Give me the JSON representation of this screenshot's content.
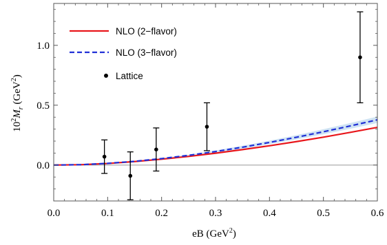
{
  "chart_data": {
    "type": "line",
    "title": "",
    "xlabel": {
      "main": "eB (GeV",
      "sup": "2",
      "tail": ")"
    },
    "ylabel": {
      "pre": "10",
      "pre_sup": "2",
      "sym": "M",
      "sub": "r",
      "mid": " (GeV",
      "sup": "2",
      "tail": ")"
    },
    "xlim": [
      0.0,
      0.6
    ],
    "ylim": [
      -0.3,
      1.35
    ],
    "x_ticks": [
      0.0,
      0.1,
      0.2,
      0.3,
      0.4,
      0.5,
      0.6
    ],
    "x_tick_labels": [
      "0.0",
      "0.1",
      "0.2",
      "0.3",
      "0.4",
      "0.5",
      "0.6"
    ],
    "y_ticks": [
      0.0,
      0.5,
      1.0
    ],
    "y_tick_labels": [
      "0.0",
      "0.5",
      "1.0"
    ],
    "grid": false,
    "legend_position": "top-left",
    "colors": {
      "nlo2": "#e8161b",
      "nlo3": "#1f2fd6",
      "band": "#cfe3f3",
      "lattice": "#000000",
      "zero_line": "#999999"
    },
    "series": [
      {
        "name": "NLO (2−flavor)",
        "style": "solid",
        "x": [
          0.0,
          0.05,
          0.1,
          0.15,
          0.2,
          0.25,
          0.3,
          0.35,
          0.4,
          0.45,
          0.5,
          0.55,
          0.6
        ],
        "y": [
          0.0,
          0.003,
          0.013,
          0.029,
          0.049,
          0.072,
          0.099,
          0.129,
          0.161,
          0.196,
          0.233,
          0.273,
          0.315
        ]
      },
      {
        "name": "NLO (3−flavor)",
        "style": "dashed",
        "x": [
          0.0,
          0.05,
          0.1,
          0.15,
          0.2,
          0.25,
          0.3,
          0.35,
          0.4,
          0.45,
          0.5,
          0.55,
          0.6
        ],
        "y": [
          0.0,
          0.003,
          0.014,
          0.031,
          0.054,
          0.081,
          0.113,
          0.149,
          0.189,
          0.232,
          0.278,
          0.327,
          0.378
        ],
        "band_low": [
          0.0,
          0.003,
          0.013,
          0.029,
          0.05,
          0.075,
          0.104,
          0.137,
          0.174,
          0.214,
          0.257,
          0.303,
          0.352
        ],
        "band_high": [
          0.0,
          0.003,
          0.015,
          0.033,
          0.058,
          0.087,
          0.122,
          0.161,
          0.204,
          0.25,
          0.299,
          0.351,
          0.405
        ]
      },
      {
        "name": "Lattice",
        "style": "points",
        "points": [
          {
            "x": 0.094,
            "y": 0.07,
            "err_low": -0.07,
            "err_high": 0.21
          },
          {
            "x": 0.142,
            "y": -0.09,
            "err_low": -0.29,
            "err_high": 0.11
          },
          {
            "x": 0.19,
            "y": 0.13,
            "err_low": -0.05,
            "err_high": 0.31
          },
          {
            "x": 0.284,
            "y": 0.32,
            "err_low": 0.12,
            "err_high": 0.52
          },
          {
            "x": 0.568,
            "y": 0.9,
            "err_low": 0.52,
            "err_high": 1.28
          }
        ]
      }
    ]
  }
}
